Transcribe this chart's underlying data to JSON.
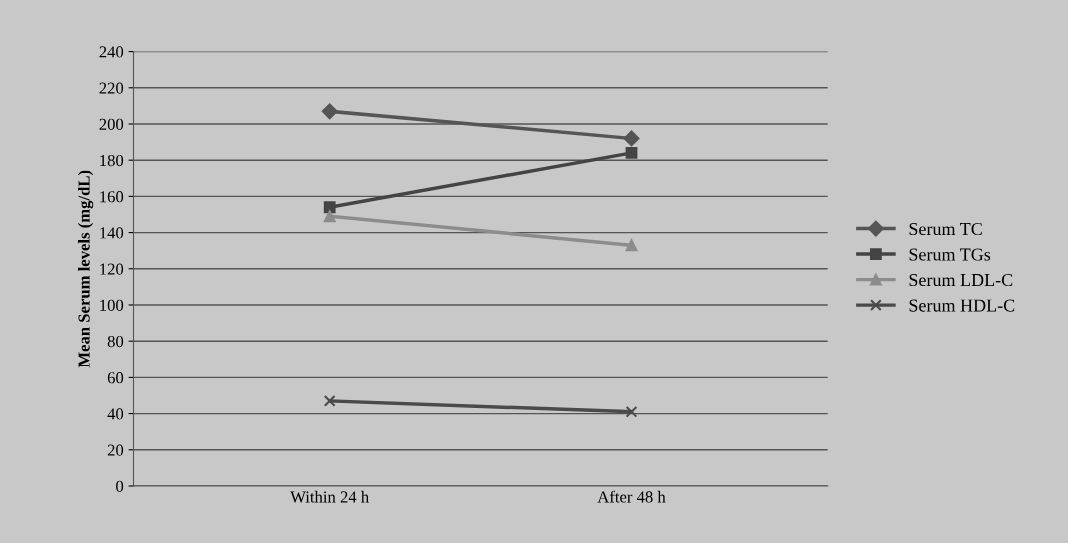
{
  "chart_data": {
    "type": "line",
    "ylabel": "Mean Serum levels (mg/dL)",
    "categories": [
      "Within 24 h",
      "After 48 h"
    ],
    "series": [
      {
        "name": "Serum TC",
        "color": "#555555",
        "marker": "diamond",
        "values": [
          207,
          192
        ]
      },
      {
        "name": "Serum TGs",
        "color": "#444444",
        "marker": "square",
        "values": [
          154,
          184
        ]
      },
      {
        "name": "Serum LDL-C",
        "color": "#8c8c8c",
        "marker": "triangle",
        "values": [
          149,
          133
        ]
      },
      {
        "name": "Serum HDL-C",
        "color": "#4a4a4a",
        "marker": "cross",
        "values": [
          47,
          41
        ]
      }
    ],
    "ylim": [
      0,
      240
    ],
    "yticks": [
      0,
      20,
      40,
      60,
      80,
      100,
      120,
      140,
      160,
      180,
      200,
      220,
      240
    ],
    "grid": "y",
    "legend": "right"
  }
}
